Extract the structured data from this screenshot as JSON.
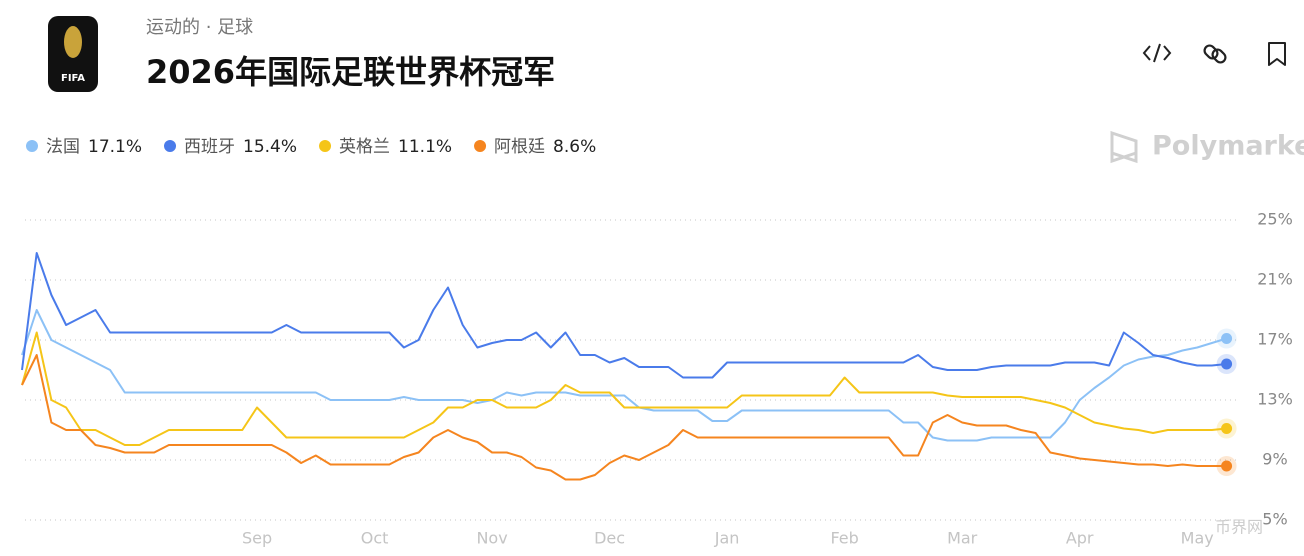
{
  "header": {
    "logo_text": "FIFA",
    "subtitle": "运动的 · 足球",
    "title": "2026年国际足联世界杯冠军"
  },
  "watermark": "Polymarket",
  "source_mark": "币界网",
  "chart_data": {
    "type": "line",
    "categories": [
      null,
      null,
      null,
      null,
      null,
      null,
      null,
      null,
      null,
      null,
      null,
      null,
      null,
      null,
      null,
      null,
      "Sep",
      null,
      null,
      null,
      null,
      null,
      null,
      null,
      "Oct",
      null,
      null,
      null,
      null,
      null,
      null,
      null,
      "Nov",
      null,
      null,
      null,
      null,
      null,
      null,
      null,
      "Dec",
      null,
      null,
      null,
      null,
      null,
      null,
      null,
      "Jan",
      null,
      null,
      null,
      null,
      null,
      null,
      null,
      "Feb",
      null,
      null,
      null,
      null,
      null,
      null,
      null,
      "Mar",
      null,
      null,
      null,
      null,
      null,
      null,
      null,
      "Apr",
      null,
      null,
      null,
      null,
      null,
      null,
      null,
      "May",
      null,
      null
    ],
    "series": [
      {
        "name": "法国",
        "color": "#8cc1f6",
        "value_label": "17.1%",
        "values": [
          16,
          19,
          17,
          16.5,
          16,
          15.5,
          15,
          13.5,
          13.5,
          13.5,
          13.5,
          13.5,
          13.5,
          13.5,
          13.5,
          13.5,
          13.5,
          13.5,
          13.5,
          13.5,
          13.5,
          13,
          13,
          13,
          13,
          13,
          13.2,
          13,
          13,
          13,
          13,
          12.8,
          13,
          13.5,
          13.3,
          13.5,
          13.5,
          13.5,
          13.3,
          13.3,
          13.3,
          13.3,
          12.5,
          12.3,
          12.3,
          12.3,
          12.3,
          11.6,
          11.6,
          12.3,
          12.3,
          12.3,
          12.3,
          12.3,
          12.3,
          12.3,
          12.3,
          12.3,
          12.3,
          12.3,
          11.5,
          11.5,
          10.5,
          10.3,
          10.3,
          10.3,
          10.5,
          10.5,
          10.5,
          10.5,
          10.5,
          11.5,
          13,
          13.8,
          14.5,
          15.3,
          15.7,
          15.9,
          16,
          16.3,
          16.5,
          16.8,
          17.1
        ]
      },
      {
        "name": "西班牙",
        "color": "#4a7bea",
        "value_label": "15.4%",
        "values": [
          15,
          22.8,
          20,
          18,
          18.5,
          19,
          17.5,
          17.5,
          17.5,
          17.5,
          17.5,
          17.5,
          17.5,
          17.5,
          17.5,
          17.5,
          17.5,
          17.5,
          18,
          17.5,
          17.5,
          17.5,
          17.5,
          17.5,
          17.5,
          17.5,
          16.5,
          17,
          19,
          20.5,
          18,
          16.5,
          16.8,
          17,
          17,
          17.5,
          16.5,
          17.5,
          16,
          16,
          15.5,
          15.8,
          15.2,
          15.2,
          15.2,
          14.5,
          14.5,
          14.5,
          15.5,
          15.5,
          15.5,
          15.5,
          15.5,
          15.5,
          15.5,
          15.5,
          15.5,
          15.5,
          15.5,
          15.5,
          15.5,
          16,
          15.2,
          15,
          15,
          15,
          15.2,
          15.3,
          15.3,
          15.3,
          15.3,
          15.5,
          15.5,
          15.5,
          15.3,
          17.5,
          16.8,
          16,
          15.8,
          15.5,
          15.3,
          15.3,
          15.4
        ]
      },
      {
        "name": "英格兰",
        "color": "#f5c518",
        "value_label": "11.1%",
        "values": [
          14,
          17.5,
          13,
          12.5,
          11,
          11,
          10.5,
          10,
          10,
          10.5,
          11,
          11,
          11,
          11,
          11,
          11,
          12.5,
          11.5,
          10.5,
          10.5,
          10.5,
          10.5,
          10.5,
          10.5,
          10.5,
          10.5,
          10.5,
          11,
          11.5,
          12.5,
          12.5,
          13,
          13,
          12.5,
          12.5,
          12.5,
          13,
          14,
          13.5,
          13.5,
          13.5,
          12.5,
          12.5,
          12.5,
          12.5,
          12.5,
          12.5,
          12.5,
          12.5,
          13.3,
          13.3,
          13.3,
          13.3,
          13.3,
          13.3,
          13.3,
          14.5,
          13.5,
          13.5,
          13.5,
          13.5,
          13.5,
          13.5,
          13.3,
          13.2,
          13.2,
          13.2,
          13.2,
          13.2,
          13,
          12.8,
          12.5,
          12,
          11.5,
          11.3,
          11.1,
          11,
          10.8,
          11,
          11,
          11,
          11,
          11.1
        ]
      },
      {
        "name": "阿根廷",
        "color": "#f5851f",
        "value_label": "8.6%",
        "values": [
          14,
          16,
          11.5,
          11,
          11,
          10,
          9.8,
          9.5,
          9.5,
          9.5,
          10,
          10,
          10,
          10,
          10,
          10,
          10,
          10,
          9.5,
          8.8,
          9.3,
          8.7,
          8.7,
          8.7,
          8.7,
          8.7,
          9.2,
          9.5,
          10.5,
          11,
          10.5,
          10.2,
          9.5,
          9.5,
          9.2,
          8.5,
          8.3,
          7.7,
          7.7,
          8,
          8.8,
          9.3,
          9,
          9.5,
          10,
          11,
          10.5,
          10.5,
          10.5,
          10.5,
          10.5,
          10.5,
          10.5,
          10.5,
          10.5,
          10.5,
          10.5,
          10.5,
          10.5,
          10.5,
          9.3,
          9.3,
          11.5,
          12,
          11.5,
          11.3,
          11.3,
          11.3,
          11,
          10.8,
          9.5,
          9.3,
          9.1,
          9,
          8.9,
          8.8,
          8.7,
          8.7,
          8.6,
          8.7,
          8.6,
          8.6,
          8.6
        ]
      }
    ],
    "ylim": [
      5,
      25
    ],
    "yticks": [
      {
        "value": 5,
        "label": "5%"
      },
      {
        "value": 9,
        "label": "9%"
      },
      {
        "value": 13,
        "label": "13%"
      },
      {
        "value": 17,
        "label": "17%"
      },
      {
        "value": 21,
        "label": "21%"
      },
      {
        "value": 25,
        "label": "25%"
      }
    ],
    "grid": true
  }
}
